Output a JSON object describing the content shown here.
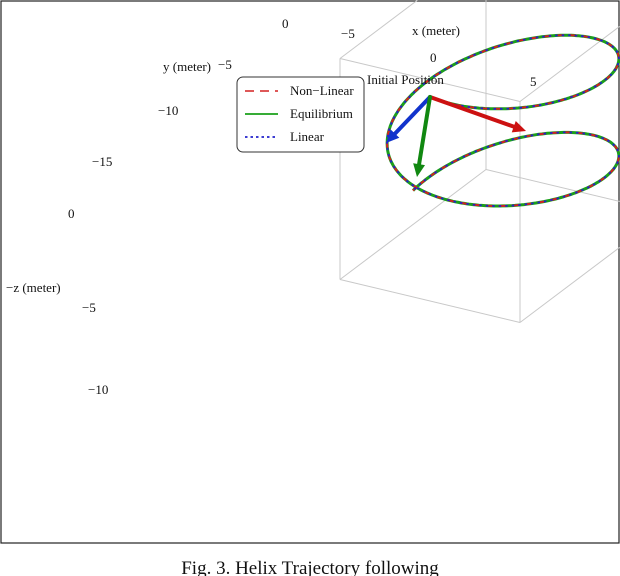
{
  "caption": "Fig. 3.   Helix Trajectory following",
  "colors": {
    "nonlinear": "#d42020",
    "equilibrium": "#1aa01a",
    "linear": "#2222cc",
    "frame_box": "#c8c8c8",
    "x_arrow": "#cc1111",
    "y_arrow": "#1133cc",
    "z_arrow": "#118811"
  },
  "chart_data": {
    "type": "line",
    "projection": "3d",
    "title": "",
    "xlabel": "x (meter)",
    "ylabel": "y (meter)",
    "zlabel": "−z (meter)",
    "x_ticks": [
      "−5",
      "0",
      "5"
    ],
    "y_ticks": [
      "0",
      "−5",
      "−10",
      "−15"
    ],
    "z_ticks": [
      "0",
      "−5",
      "−10"
    ],
    "xlim": [
      -10,
      10
    ],
    "ylim": [
      -20,
      0
    ],
    "zlim": [
      -12,
      1
    ],
    "annotation": "Initial Position",
    "legend": {
      "position": "top-left",
      "entries": [
        {
          "label": "Non−Linear",
          "style": "long-dash",
          "color": "#d42020"
        },
        {
          "label": "Equilibrium",
          "style": "solid",
          "color": "#1aa01a"
        },
        {
          "label": "Linear",
          "style": "dotted",
          "color": "#2222cc"
        }
      ]
    },
    "helix": {
      "center_x": 0,
      "center_y": -10,
      "radius": 10,
      "z_start": 0,
      "z_end": -10,
      "turns": 1.75
    },
    "series": [
      {
        "name": "Non−Linear",
        "style": "long-dash"
      },
      {
        "name": "Equilibrium",
        "style": "solid"
      },
      {
        "name": "Linear",
        "style": "dotted"
      }
    ],
    "body_frame_arrows": [
      "x",
      "y",
      "z"
    ]
  }
}
